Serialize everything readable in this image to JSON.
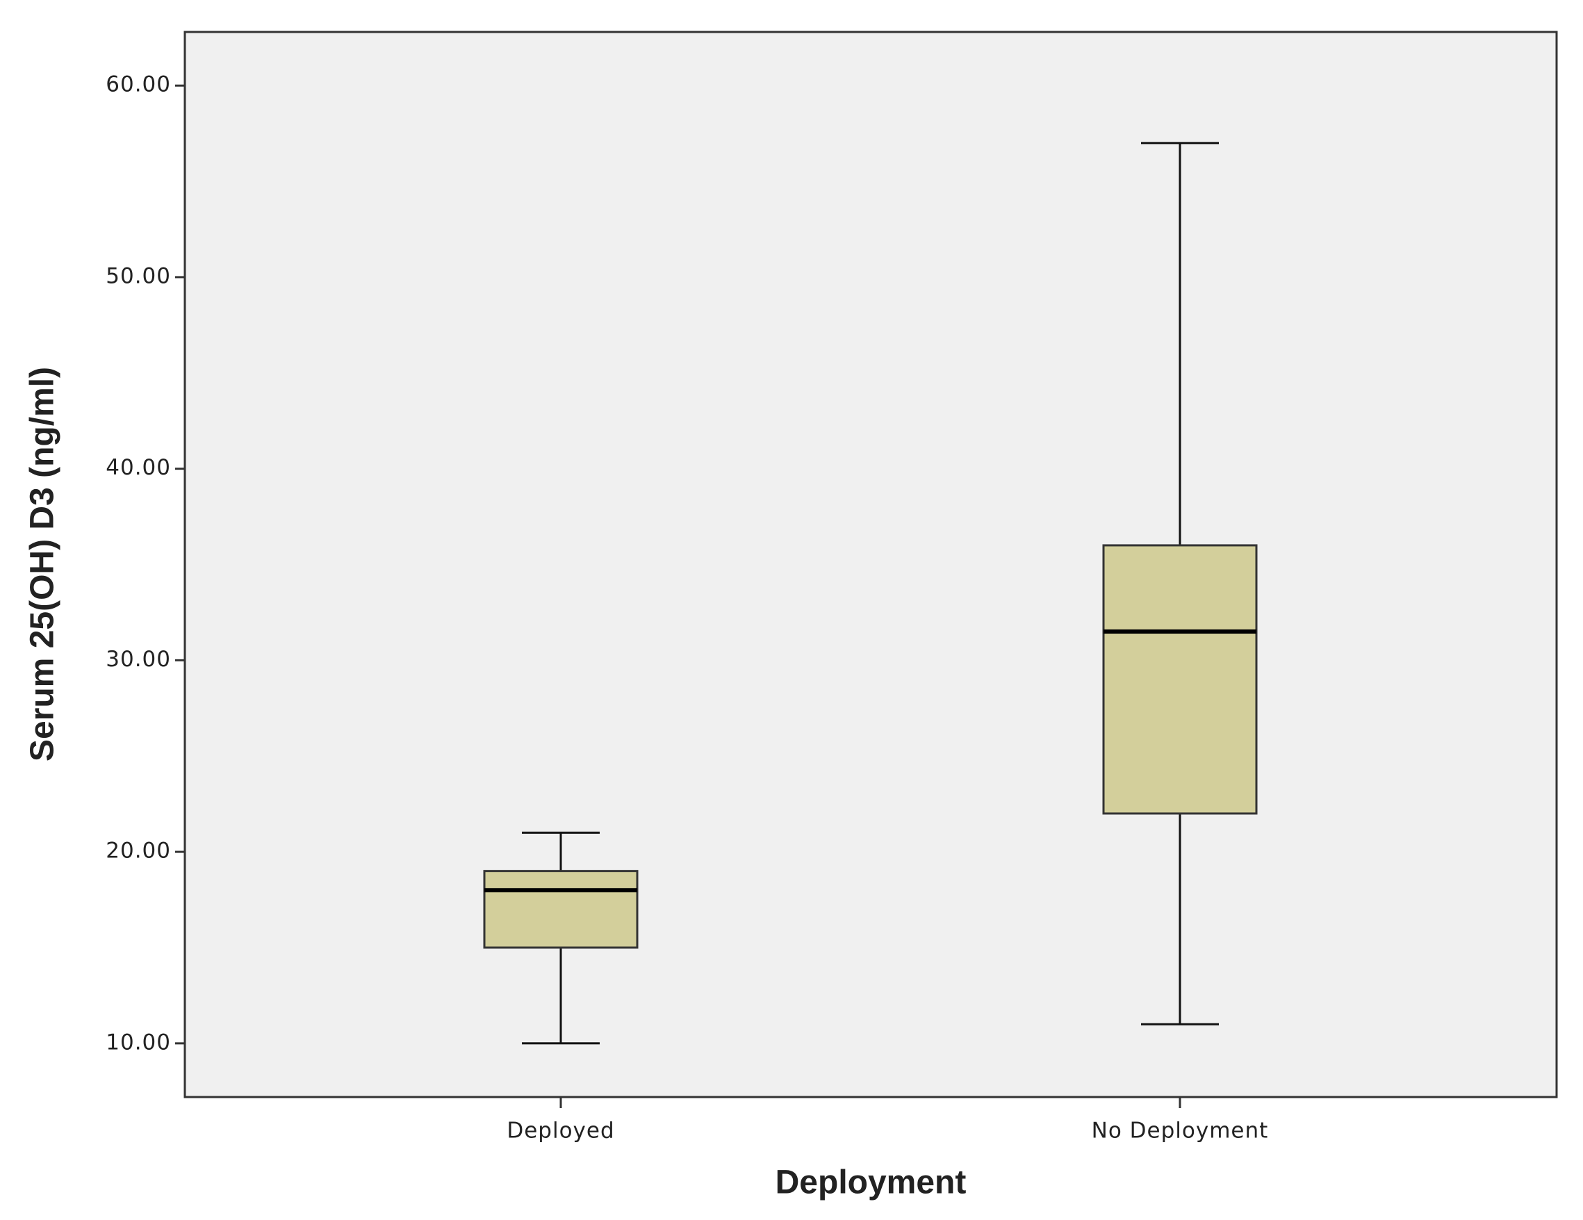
{
  "chart_data": {
    "type": "box",
    "x_label": "Deployment",
    "y_label": "Serum 25(OH) D3 (ng/ml)",
    "categories": [
      "Deployed",
      "No Deployment"
    ],
    "min": [
      10,
      11
    ],
    "q1": [
      15,
      22
    ],
    "median": [
      18,
      31.5
    ],
    "q3": [
      19,
      36
    ],
    "max": [
      21,
      57
    ],
    "color": "#d3cf9b",
    "ylim": [
      7.2,
      62.8
    ],
    "yticks": [
      {
        "value": 10,
        "label": "10.00"
      },
      {
        "value": 20,
        "label": "20.00"
      },
      {
        "value": 30,
        "label": "30.00"
      },
      {
        "value": 40,
        "label": "40.00"
      },
      {
        "value": 50,
        "label": "50.00"
      },
      {
        "value": 60,
        "label": "60.00"
      }
    ]
  }
}
